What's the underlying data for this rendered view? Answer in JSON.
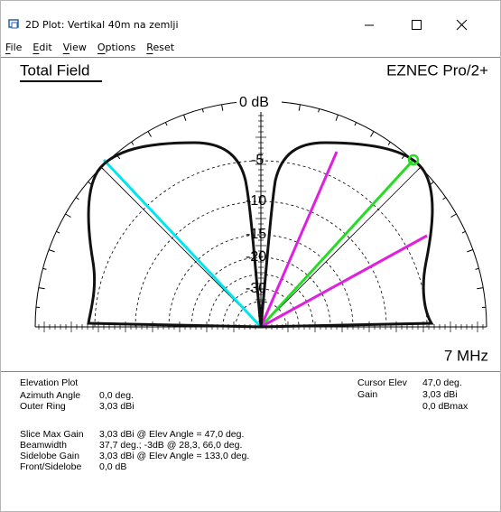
{
  "window": {
    "title": "2D Plot: Vertikal 40m na zemlji"
  },
  "menu": [
    "File",
    "Edit",
    "View",
    "Options",
    "Reset"
  ],
  "plot": {
    "title": "Total Field",
    "program": "EZNEC Pro/2+",
    "ring_labels": [
      "0 dB",
      "-5",
      "-10",
      "-15",
      "-20",
      "-30"
    ],
    "frequency": "7 MHz"
  },
  "info": {
    "left": [
      {
        "label": "Elevation Plot"
      },
      {
        "label": "Azimuth Angle",
        "value": "0,0 deg."
      },
      {
        "label": "Outer Ring",
        "value": "3,03 dBi"
      },
      {
        "label": "Slice Max Gain",
        "value": "3,03 dBi @ Elev Angle = 47,0 deg."
      },
      {
        "label": "Beamwidth",
        "value": "37,7 deg.; -3dB @ 28,3, 66,0 deg."
      },
      {
        "label": "Sidelobe Gain",
        "value": "3,03 dBi @ Elev Angle = 133,0 deg."
      },
      {
        "label": "Front/Sidelobe",
        "value": "0,0 dB"
      }
    ],
    "right": [
      {
        "label": "Cursor Elev",
        "value": "47,0 deg."
      },
      {
        "label": "Gain",
        "value": "3,03 dBi"
      },
      {
        "value": "0,0 dBmax"
      }
    ]
  }
}
